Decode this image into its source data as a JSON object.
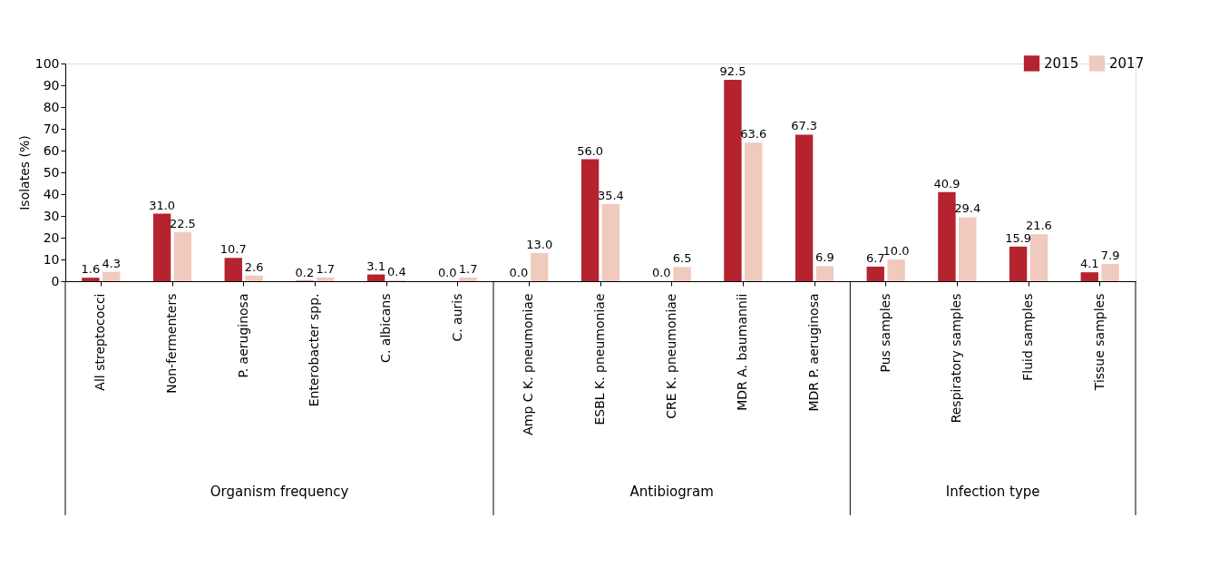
{
  "chart_data": {
    "type": "bar",
    "ylabel": "Isolates (%)",
    "categories": [
      "All streptococci",
      "Non-fermenters",
      "P. aeruginosa",
      "Enterobacter spp.",
      "C. albicans",
      "C. auris",
      "Amp C K. pneumoniae",
      "ESBL K. pneumoniae",
      "CRE K. pneumoniae",
      "MDR A. baumannii",
      "MDR P. aeruginosa",
      "Pus samples",
      "Respiratory samples",
      "Fluid samples",
      "Tissue samples"
    ],
    "series": [
      {
        "name": "2015",
        "color": "#b5232f",
        "values": [
          1.6,
          31.0,
          10.7,
          0.2,
          3.1,
          0.0,
          0.0,
          56.0,
          0.0,
          92.5,
          67.3,
          6.7,
          40.9,
          15.9,
          4.1
        ],
        "value_labels": [
          "1.6",
          "31.0",
          "10.7",
          "0.2",
          "3.1",
          "0.0",
          "0.0",
          "56.0",
          "0.0",
          "92.5",
          "67.3",
          "6.7",
          "40.9",
          "15.9",
          "4.1"
        ]
      },
      {
        "name": "2017",
        "color": "#efcabd",
        "values": [
          4.3,
          22.5,
          2.6,
          1.7,
          0.4,
          1.7,
          13.0,
          35.4,
          6.5,
          63.6,
          6.9,
          10.0,
          29.4,
          21.6,
          7.9
        ],
        "value_labels": [
          "4.3",
          "22.5",
          "2.6",
          "1.7",
          "0.4",
          "1.7",
          "13.0",
          "35.4",
          "6.5",
          "63.6",
          "6.9",
          "10.0",
          "29.4",
          "21.6",
          "7.9"
        ]
      }
    ],
    "ylim": [
      0,
      100
    ],
    "yticks": [
      0,
      10,
      20,
      30,
      40,
      50,
      60,
      70,
      80,
      90,
      100
    ],
    "grid": false,
    "legend": "top right",
    "annotations": [
      "Organism frequency",
      "Antibiogram",
      "Infection type"
    ]
  }
}
